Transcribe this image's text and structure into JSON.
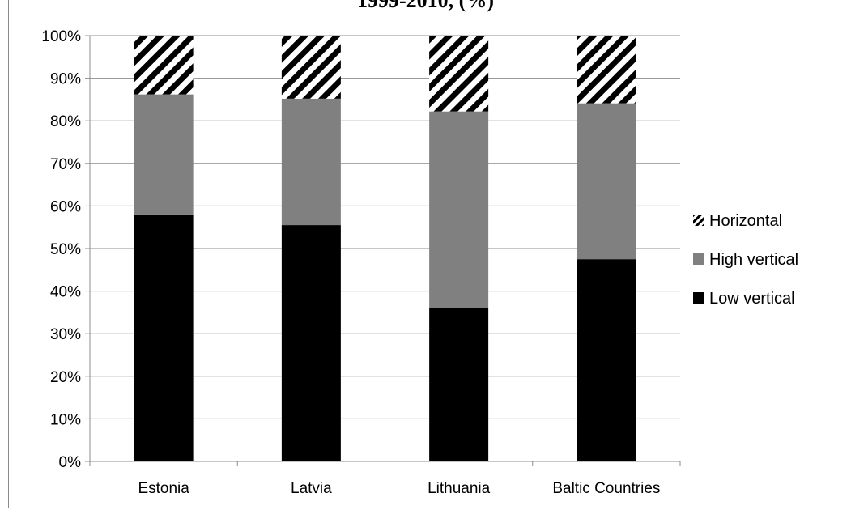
{
  "chart_data": {
    "type": "bar",
    "stacked": true,
    "title": "1999-2010, (%)",
    "categories": [
      "Estonia",
      "Latvia",
      "Lithuania",
      "Baltic Countries"
    ],
    "series": [
      {
        "name": "Low vertical",
        "values": [
          58,
          55.5,
          36,
          47.5
        ],
        "color": "#000000",
        "pattern": "solid"
      },
      {
        "name": "High vertical",
        "values": [
          28.2,
          29.7,
          46.2,
          36.6
        ],
        "color": "#808080",
        "pattern": "solid"
      },
      {
        "name": "Horizontal",
        "values": [
          13.8,
          14.8,
          17.8,
          15.9
        ],
        "color": "#000000",
        "pattern": "diagonal-stripes"
      }
    ],
    "ylim": [
      0,
      100
    ],
    "yticks": [
      "0%",
      "10%",
      "20%",
      "30%",
      "40%",
      "50%",
      "60%",
      "70%",
      "80%",
      "90%",
      "100%"
    ],
    "grid": true,
    "legend_position": "right",
    "xlabel": "",
    "ylabel": ""
  }
}
